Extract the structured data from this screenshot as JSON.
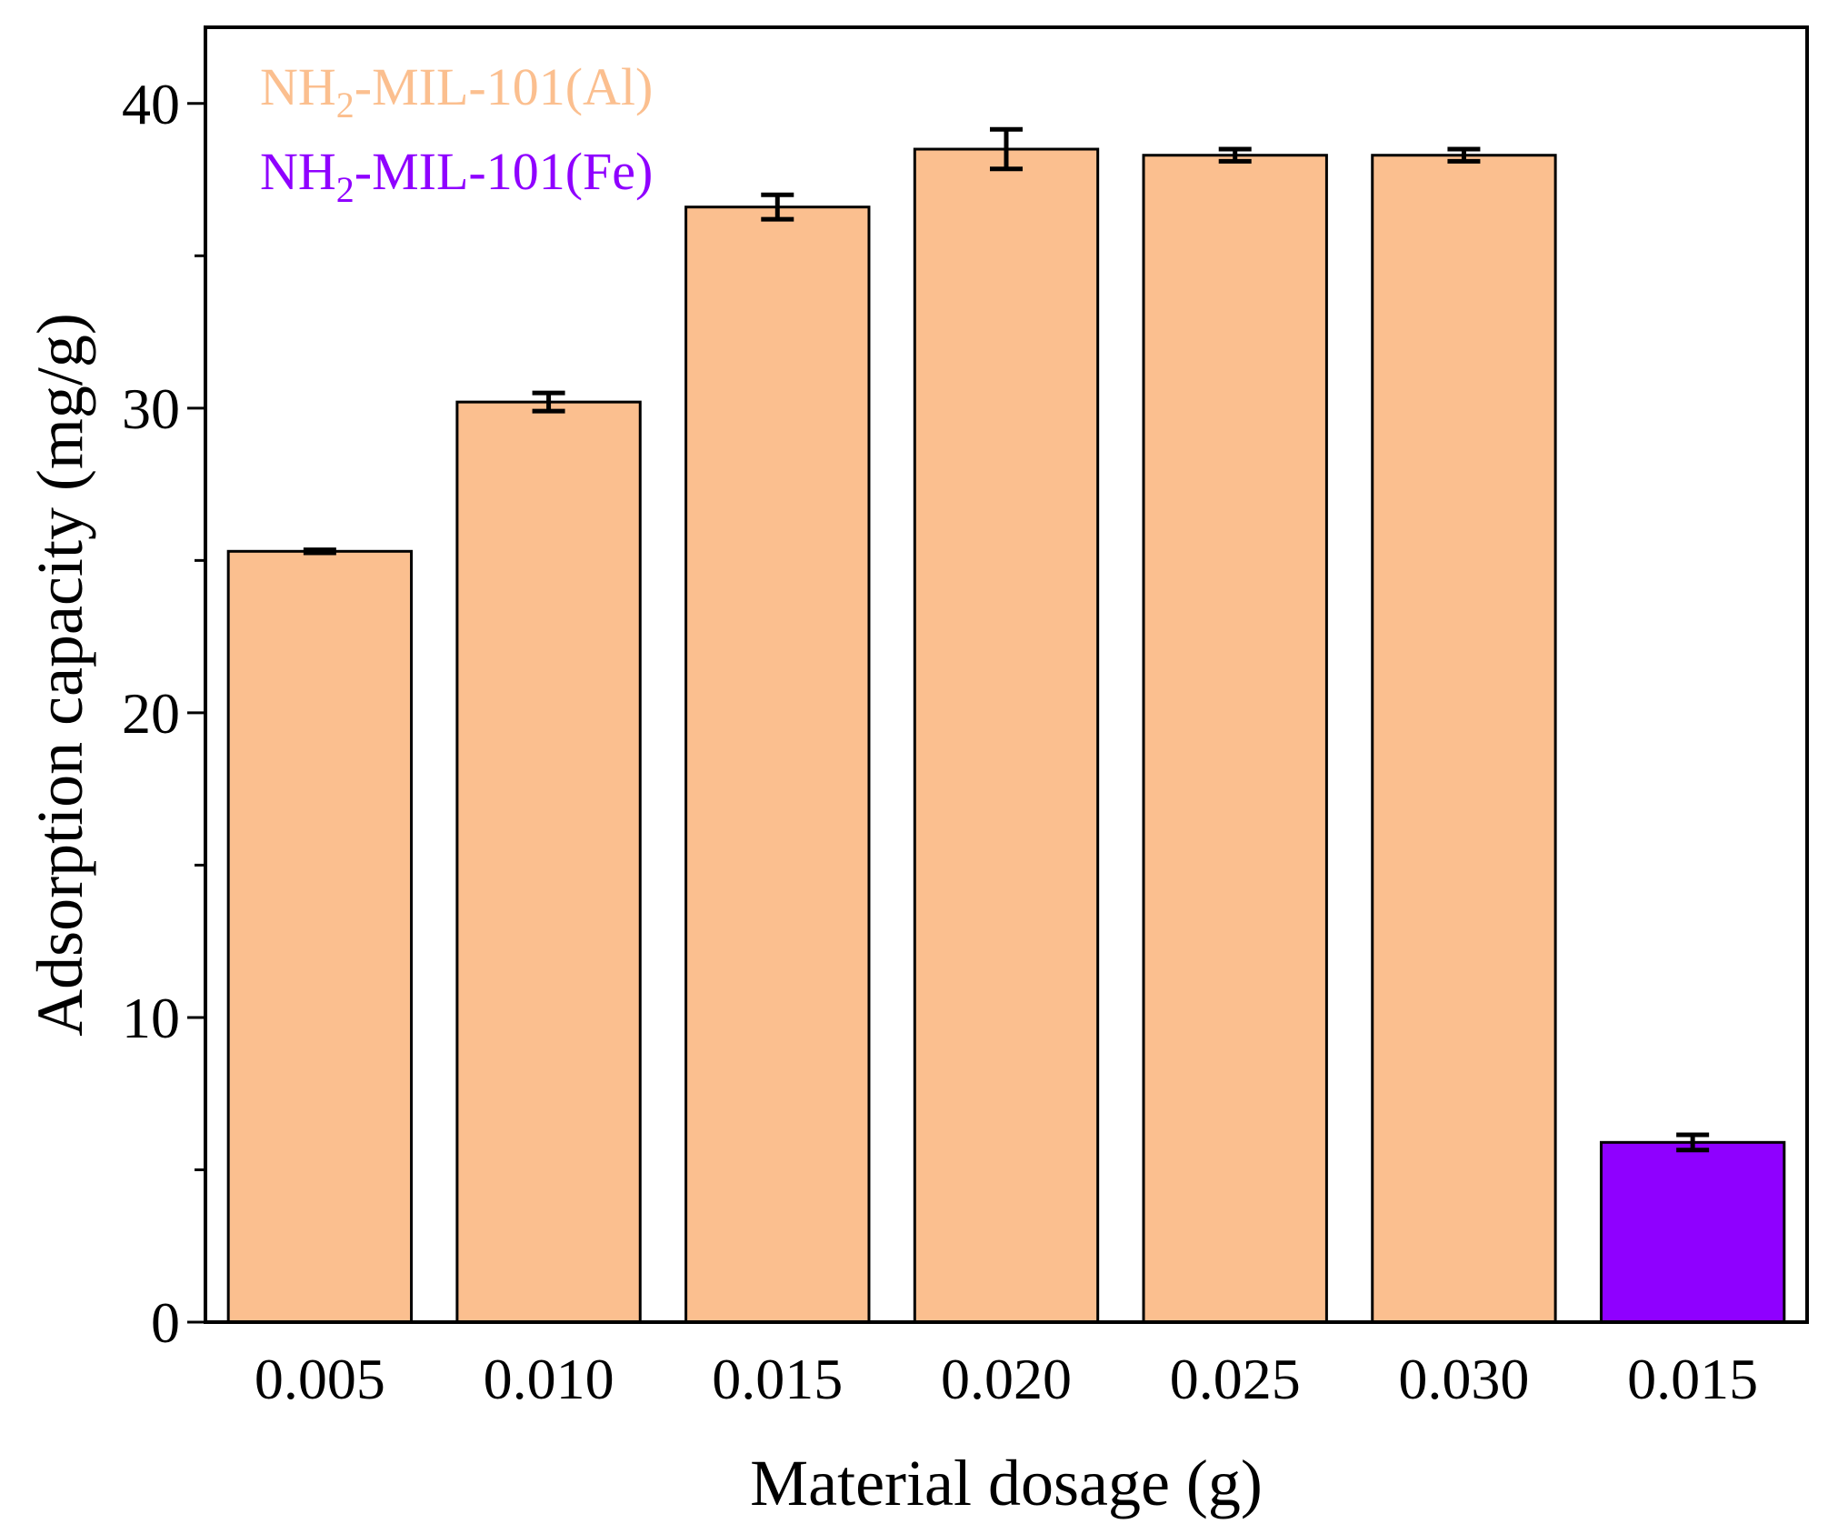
{
  "chart_data": {
    "type": "bar",
    "title": "",
    "xlabel": "Material dosage (g)",
    "ylabel": "Adsorption capacity (mg/g)",
    "ylim": [
      0,
      42.5
    ],
    "y_major_ticks": [
      "0",
      "10",
      "20",
      "30",
      "40"
    ],
    "categories": [
      "0.005",
      "0.010",
      "0.015",
      "0.020",
      "0.025",
      "0.030",
      "0.015"
    ],
    "values": [
      25.3,
      30.2,
      36.6,
      38.5,
      38.3,
      38.3,
      5.9
    ],
    "errors": [
      0.05,
      0.3,
      0.4,
      0.65,
      0.2,
      0.2,
      0.25
    ],
    "bar_series": [
      0,
      0,
      0,
      0,
      0,
      0,
      1
    ],
    "series": [
      {
        "name_main": "NH",
        "name_sub": "2",
        "name_rest": "-MIL-101(Al)",
        "color": "#fbbf8f"
      },
      {
        "name_main": "NH",
        "name_sub": "2",
        "name_rest": "-MIL-101(Fe)",
        "color": "#8f00ff"
      }
    ],
    "grid": false,
    "legend_position": "top-left"
  }
}
